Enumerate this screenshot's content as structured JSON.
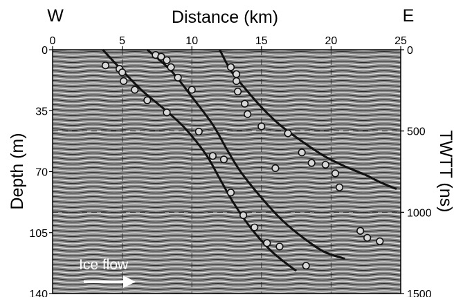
{
  "chart_data": {
    "type": "scatter",
    "title": "",
    "top_axis": {
      "label": "Distance (km)",
      "left_label": "W",
      "right_label": "E",
      "range": [
        0,
        25
      ],
      "ticks": [
        0,
        5,
        10,
        15,
        20,
        25
      ]
    },
    "left_axis": {
      "label": "Depth (m)",
      "range": [
        0,
        140
      ],
      "ticks": [
        0,
        35,
        70,
        105,
        140
      ]
    },
    "right_axis": {
      "label": "TWTT (ns)",
      "range": [
        0,
        1500
      ],
      "ticks": [
        0,
        500,
        1000,
        1500
      ]
    },
    "grid": "dashed",
    "annotation": "Ice flow",
    "annotation_arrow": "right",
    "background": "radar-gram texture",
    "colors": {
      "curve": "#111111",
      "marker_edge": "#111111",
      "marker_fill": "#d8d8d8",
      "background": "#8a8a8a"
    },
    "curves": [
      {
        "x": [
          3.6,
          5.0,
          6.5,
          8.0,
          9.5,
          11.0,
          12.0,
          13.0,
          14.2,
          15.5,
          16.5,
          17.5
        ],
        "y": [
          0,
          12,
          24,
          34,
          45,
          60,
          74,
          88,
          102,
          114,
          121,
          127
        ]
      },
      {
        "x": [
          6.8,
          8.5,
          10.0,
          11.5,
          12.5,
          13.5,
          15.0,
          16.5,
          18.0,
          19.5,
          21.0
        ],
        "y": [
          0,
          12,
          27,
          43,
          57,
          70,
          85,
          98,
          108,
          116,
          120
        ]
      },
      {
        "x": [
          12.0,
          12.8,
          13.8,
          15.0,
          16.3,
          17.8,
          19.5,
          21.0,
          22.5,
          23.5,
          24.7
        ],
        "y": [
          0,
          12,
          22,
          33,
          43,
          52,
          61,
          67,
          72,
          76,
          80
        ]
      }
    ],
    "series": [
      {
        "x": [
          3.8,
          4.8,
          5.0,
          5.1,
          5.9,
          6.8,
          8.2
        ],
        "y": [
          9,
          11,
          13,
          18,
          23,
          29,
          36
        ]
      },
      {
        "x": [
          7.4,
          7.8,
          8.2,
          8.5,
          9.0,
          10.0,
          10.5,
          11.5,
          12.3,
          12.8,
          13.7,
          14.5,
          15.4,
          16.3,
          18.2
        ],
        "y": [
          3,
          4,
          6,
          10,
          16,
          23,
          47,
          61,
          63,
          82,
          95,
          102,
          111,
          113,
          124
        ]
      },
      {
        "x": [
          12.8,
          13.2,
          13.2,
          13.3,
          13.8,
          14.0,
          15.0,
          16.0,
          16.9,
          17.9,
          18.6,
          19.6,
          20.3,
          20.6,
          22.1,
          22.6,
          23.5
        ],
        "y": [
          10,
          14,
          18,
          24,
          31,
          37,
          44,
          68,
          48,
          59,
          65,
          66,
          71,
          79,
          104,
          108,
          110
        ]
      }
    ]
  }
}
